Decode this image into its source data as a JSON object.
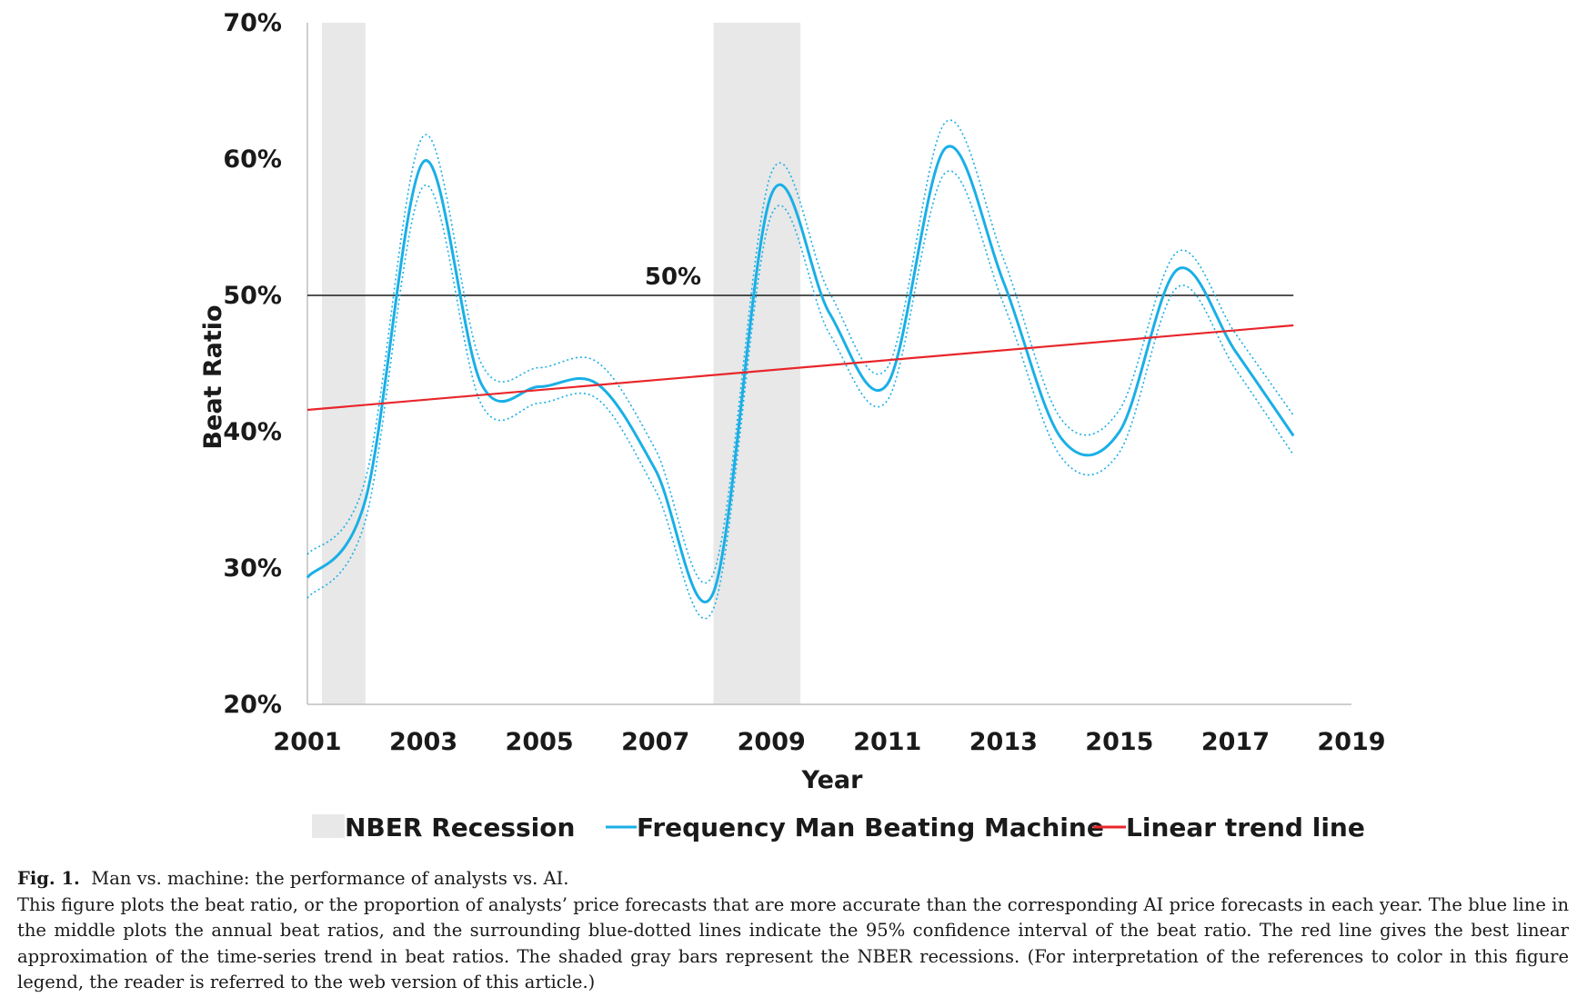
{
  "chart_data": {
    "type": "line",
    "xlabel": "Year",
    "ylabel": "Beat Ratio",
    "xlim": [
      2001,
      2019
    ],
    "ylim": [
      0.2,
      0.7
    ],
    "x_ticks": [
      "2001",
      "2003",
      "2005",
      "2007",
      "2009",
      "2011",
      "2013",
      "2015",
      "2017",
      "2019"
    ],
    "y_ticks": [
      "20%",
      "30%",
      "40%",
      "50%",
      "60%",
      "70%"
    ],
    "grid": false,
    "legend_position": "bottom",
    "legend": {
      "recession": "NBER Recession",
      "beat": "Frequency Man Beating Machine",
      "trend": "Linear trend line"
    },
    "annotation": "50%",
    "reference_line_y": 0.5,
    "recessions": [
      [
        2001.25,
        2002.0
      ],
      [
        2008.0,
        2009.5
      ]
    ],
    "series": [
      {
        "name": "Frequency Man Beating Machine",
        "x": [
          2001,
          2002,
          2003,
          2004,
          2005,
          2006,
          2007,
          2008,
          2009,
          2010,
          2011,
          2012,
          2013,
          2014,
          2015,
          2016,
          2017,
          2018
        ],
        "values": [
          0.293,
          0.35,
          0.598,
          0.435,
          0.433,
          0.435,
          0.372,
          0.282,
          0.574,
          0.487,
          0.435,
          0.608,
          0.51,
          0.395,
          0.4,
          0.519,
          0.459,
          0.397
        ],
        "ci_upper": [
          0.31,
          0.365,
          0.617,
          0.45,
          0.447,
          0.451,
          0.387,
          0.296,
          0.59,
          0.502,
          0.447,
          0.627,
          0.527,
          0.409,
          0.416,
          0.532,
          0.472,
          0.412
        ],
        "ci_lower": [
          0.278,
          0.335,
          0.58,
          0.42,
          0.421,
          0.424,
          0.357,
          0.27,
          0.559,
          0.472,
          0.423,
          0.59,
          0.494,
          0.381,
          0.385,
          0.506,
          0.446,
          0.383
        ]
      },
      {
        "name": "Linear trend line",
        "x": [
          2001,
          2018
        ],
        "values": [
          0.416,
          0.478
        ]
      }
    ],
    "colors": {
      "beat": "#1AAFE6",
      "trend": "#E8262B",
      "reference": "#1a1a1a",
      "recession": "#E8E8E8",
      "axis": "#bfbfbf"
    }
  },
  "caption": {
    "label": "Fig. 1.",
    "title": "Man vs. machine: the performance of analysts vs. AI.",
    "body": "This figure plots the beat ratio, or the proportion of analysts’ price forecasts that are more accurate than the corresponding AI price forecasts in each year. The blue line in the middle plots the annual beat ratios, and the surrounding blue-dotted lines indicate the 95% confidence interval of the beat ratio. The red line gives the best linear approximation of the time-series trend in beat ratios. The shaded gray bars represent the NBER recessions. (For interpretation of the references to color in this figure legend, the reader is referred to the web version of this article.)"
  }
}
